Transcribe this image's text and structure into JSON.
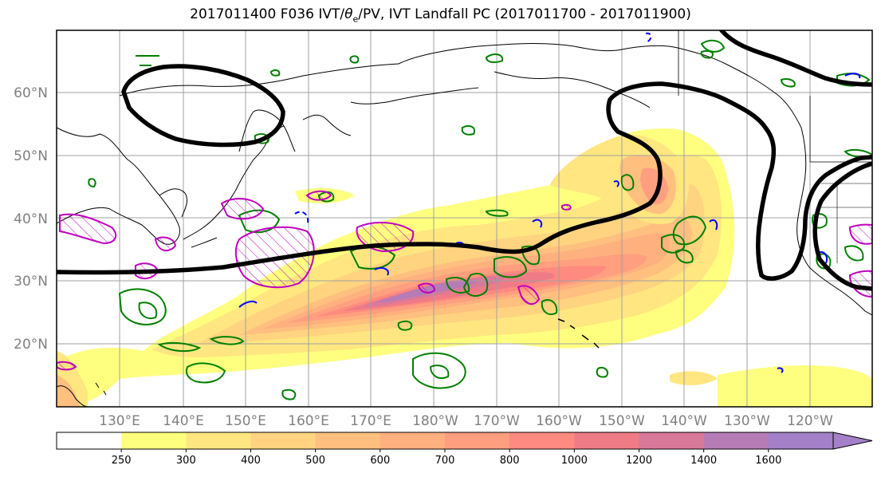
{
  "title": {
    "main": "2017011400 F036 IVT/",
    "theta": "θ",
    "sub": "e",
    "rest": "/PV, IVT Landfall PC (2017011700 - 2017011900)"
  },
  "lat_labels": [
    "60°N",
    "50°N",
    "40°N",
    "30°N",
    "20°N"
  ],
  "lon_labels": [
    "130°E",
    "140°E",
    "150°E",
    "160°E",
    "170°E",
    "180°W",
    "170°W",
    "160°W",
    "150°W",
    "140°W",
    "130°W",
    "120°W"
  ],
  "colorbar": {
    "levels": [
      "250",
      "300",
      "400",
      "500",
      "600",
      "700",
      "800",
      "1000",
      "1200",
      "1400",
      "1600"
    ],
    "colors": [
      "#ffffff",
      "#ffff7f",
      "#ffe680",
      "#ffd37f",
      "#ffbf7f",
      "#ffb07f",
      "#ff9f7f",
      "#ff8a7f",
      "#ee7b86",
      "#d9799a",
      "#b57cb6",
      "#a480c8"
    ]
  },
  "colors": {
    "pc_contour": "#000000",
    "theta_e": "#008000",
    "pv_positive": "#c000c0",
    "pv_negative": "#0000ff",
    "grid": "#a0a0a0",
    "coast": "#000000"
  }
}
